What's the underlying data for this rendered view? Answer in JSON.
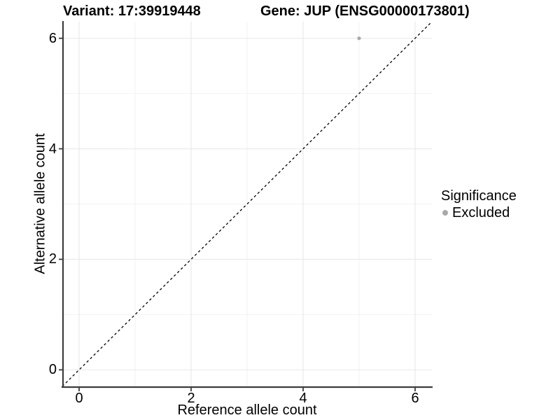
{
  "header": {
    "variant_title": "Variant: 17:39919448",
    "gene_title": "Gene: JUP (ENSG00000173801)"
  },
  "axes": {
    "x_label": "Reference allele count",
    "y_label": "Alternative allele count"
  },
  "legend": {
    "title": "Significance",
    "items": [
      {
        "label": "Excluded",
        "color": "#a9a9a9"
      }
    ]
  },
  "chart_data": {
    "type": "scatter",
    "title": "Variant: 17:39919448    Gene: JUP (ENSG00000173801)",
    "xlabel": "Reference allele count",
    "ylabel": "Alternative allele count",
    "xlim": [
      -0.3,
      6.3
    ],
    "ylim": [
      -0.3,
      6.3
    ],
    "xticks": [
      0,
      2,
      4,
      6
    ],
    "yticks": [
      0,
      2,
      4,
      6
    ],
    "x_minor": [
      1,
      3,
      5
    ],
    "y_minor": [
      1,
      3,
      5
    ],
    "grid": true,
    "legend_position": "right",
    "identity_line": {
      "from": [
        -0.3,
        -0.3
      ],
      "to": [
        6.3,
        6.3
      ],
      "style": "dashed",
      "color": "#000000"
    },
    "series": [
      {
        "name": "Excluded",
        "color": "#a9a9a9",
        "points": [
          {
            "x": 5,
            "y": 6
          }
        ],
        "point_radius": 2.6
      }
    ],
    "colors": {
      "grid_major": "#e9e9e9",
      "grid_minor": "#f2f2f2",
      "axis_line": "#3d3d3d",
      "text": "#000000"
    }
  }
}
